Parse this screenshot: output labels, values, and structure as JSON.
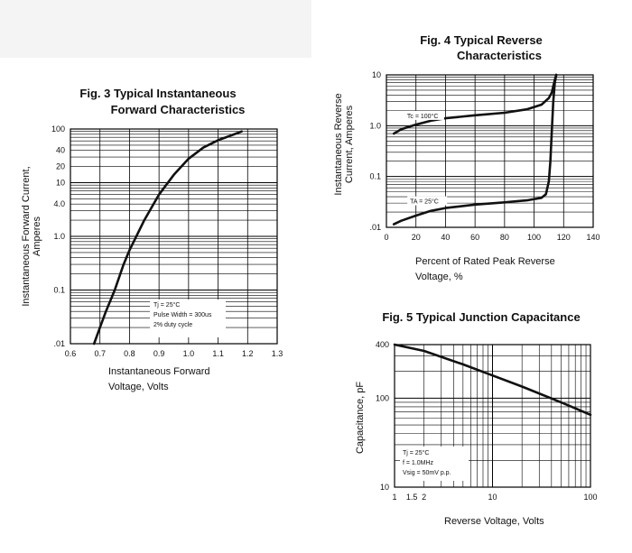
{
  "chart_data": [
    {
      "type": "line",
      "title": [
        "Fig. 3 Typical Instantaneous",
        "Forward Characteristics"
      ],
      "xlabel": [
        "Instantaneous Forward",
        "Voltage, Volts"
      ],
      "ylabel": [
        "Instantaneous Forward Current,",
        "Amperes"
      ],
      "x_ticks": [
        "0.6",
        "0.7",
        "0.8",
        "0.9",
        "1.0",
        "1.1",
        "1.2",
        "1.3"
      ],
      "y_ticks": [
        {
          "value": 0.01,
          "label": ".01"
        },
        {
          "value": 0.1,
          "label": "0.1"
        },
        {
          "value": 1,
          "label": "1.0"
        },
        {
          "value": 4,
          "label": "4.0"
        },
        {
          "value": 10,
          "label": "10"
        },
        {
          "value": 20,
          "label": "20"
        },
        {
          "value": 40,
          "label": "40"
        },
        {
          "value": 100,
          "label": "100"
        }
      ],
      "xlim": [
        0.6,
        1.3
      ],
      "ylim": [
        0.01,
        100
      ],
      "y_scale": "log",
      "grid": true,
      "annotation": [
        "Tj = 25°C",
        "Pulse Width = 300us",
        "2% duty cycle"
      ],
      "series": [
        {
          "x": [
            0.68,
            0.7,
            0.72,
            0.75,
            0.78,
            0.8,
            0.85,
            0.9,
            0.95,
            1.0,
            1.05,
            1.1,
            1.15,
            1.18
          ],
          "y": [
            0.01,
            0.02,
            0.04,
            0.1,
            0.3,
            0.55,
            2,
            6,
            14,
            28,
            45,
            62,
            78,
            90
          ]
        }
      ]
    },
    {
      "type": "line",
      "title": [
        "Fig. 4 Typical Reverse",
        "Characteristics"
      ],
      "xlabel": [
        "Percent of Rated Peak Reverse",
        "Voltage, %"
      ],
      "ylabel": [
        "Instantaneous Reverse",
        "Current, Amperes"
      ],
      "x_ticks": [
        "0",
        "20",
        "40",
        "60",
        "80",
        "100",
        "120",
        "140"
      ],
      "y_ticks": [
        {
          "value": 0.01,
          "label": ".01"
        },
        {
          "value": 0.1,
          "label": "0.1"
        },
        {
          "value": 1,
          "label": "1.0"
        },
        {
          "value": 10,
          "label": "10"
        }
      ],
      "xlim": [
        0,
        140
      ],
      "ylim": [
        0.01,
        10
      ],
      "y_scale": "log",
      "grid": true,
      "series": [
        {
          "name": "Tc = 100°C",
          "x": [
            5,
            10,
            20,
            30,
            40,
            60,
            80,
            95,
            105,
            110,
            112,
            113,
            114,
            115
          ],
          "y": [
            0.7,
            0.85,
            1.05,
            1.25,
            1.4,
            1.6,
            1.8,
            2.1,
            2.6,
            3.5,
            4.5,
            6,
            8,
            10
          ]
        },
        {
          "name": "TA = 25°C",
          "x": [
            5,
            10,
            20,
            30,
            40,
            60,
            80,
            95,
            105,
            108,
            110,
            111,
            112,
            113,
            114,
            115
          ],
          "y": [
            0.0115,
            0.0135,
            0.017,
            0.021,
            0.024,
            0.028,
            0.031,
            0.034,
            0.038,
            0.045,
            0.08,
            0.2,
            0.8,
            3,
            7,
            10
          ]
        }
      ]
    },
    {
      "type": "line",
      "title": [
        "Fig. 5 Typical Junction Capacitance"
      ],
      "xlabel": [
        "Reverse Voltage, Volts"
      ],
      "ylabel": [
        "Capacitance, pF"
      ],
      "x_ticks": [
        {
          "value": 1,
          "label": "1"
        },
        {
          "value": 1.5,
          "label": "1.5"
        },
        {
          "value": 2,
          "label": "2"
        },
        {
          "value": 10,
          "label": "10"
        },
        {
          "value": 100,
          "label": "100"
        }
      ],
      "y_ticks": [
        {
          "value": 10,
          "label": "10"
        },
        {
          "value": 100,
          "label": "100"
        },
        {
          "value": 400,
          "label": "400"
        }
      ],
      "xlim": [
        1,
        100
      ],
      "ylim": [
        10,
        400
      ],
      "x_scale": "log",
      "y_scale": "log",
      "grid": true,
      "annotation": [
        "Tj = 25°C",
        "f = 1.0MHz",
        "Vsig = 50mV p.p."
      ],
      "series": [
        {
          "x": [
            1,
            2,
            5,
            10,
            20,
            50,
            100
          ],
          "y": [
            400,
            340,
            240,
            180,
            135,
            90,
            65
          ]
        }
      ]
    }
  ]
}
